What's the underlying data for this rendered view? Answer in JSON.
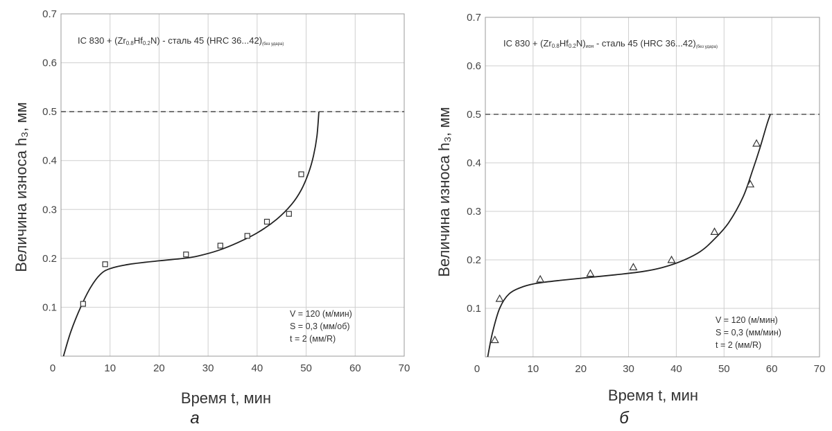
{
  "chart_data": [
    {
      "type": "scatter",
      "panel_label": "а",
      "title_text": "IC 830 + (Zr0.8Hf0.2N) - сталь 45 (HRC 36...42)",
      "title_parts": {
        "prefix": "IC 830 + (Zr",
        "sub1": "0.8",
        "mid": "Hf",
        "sub2": "0.2",
        "suffix": "N) - сталь 45 (HRC 36...42)",
        "tail": "(без удара)"
      },
      "xlabel": "Время t, мин",
      "ylabel": "Величина износа h₃, мм",
      "xlim": [
        0,
        70
      ],
      "ylim": [
        0,
        0.7
      ],
      "xticks": [
        "0",
        "10",
        "20",
        "30",
        "40",
        "50",
        "60",
        "70"
      ],
      "yticks": [
        "0.1",
        "0.2",
        "0.3",
        "0.4",
        "0.5",
        "0.6",
        "0.7"
      ],
      "grid": true,
      "threshold": 0.5,
      "marker": "square",
      "params": [
        "V = 120 (м/мин)",
        "S = 0,3  (мм/об)",
        "t =  2   (мм/R)"
      ],
      "points": [
        [
          4.5,
          0.107
        ],
        [
          9,
          0.188
        ],
        [
          25.5,
          0.208
        ],
        [
          32.5,
          0.226
        ],
        [
          38,
          0.246
        ],
        [
          42,
          0.275
        ],
        [
          46.5,
          0.291
        ],
        [
          49,
          0.372
        ]
      ],
      "curve": [
        [
          0.5,
          0.0
        ],
        [
          2,
          0.05
        ],
        [
          4,
          0.1
        ],
        [
          6,
          0.14
        ],
        [
          8,
          0.167
        ],
        [
          10,
          0.179
        ],
        [
          14,
          0.188
        ],
        [
          20,
          0.195
        ],
        [
          25,
          0.2
        ],
        [
          28,
          0.205
        ],
        [
          32,
          0.216
        ],
        [
          36,
          0.232
        ],
        [
          40,
          0.252
        ],
        [
          44,
          0.28
        ],
        [
          47,
          0.31
        ],
        [
          49,
          0.34
        ],
        [
          50.5,
          0.375
        ],
        [
          51.5,
          0.41
        ],
        [
          52.2,
          0.45
        ],
        [
          52.6,
          0.5
        ]
      ]
    },
    {
      "type": "scatter",
      "panel_label": "б",
      "title_text": "IC 830 + (Zr0.8Hf0.2N)ион - сталь 45 (HRC 36...42)",
      "title_parts": {
        "prefix": "IC 830 + (Zr",
        "sub1": "0.8",
        "mid": "Hf",
        "sub2": "0.2",
        "suffix": "N)",
        "sub3": "ион",
        "suffix2": " - сталь 45 (HRC 36...42)",
        "tail": "(без удара)"
      },
      "xlabel": "Время t, мин",
      "ylabel": "Величина износа h₃, мм",
      "xlim": [
        0,
        70
      ],
      "ylim": [
        0,
        0.7
      ],
      "xticks": [
        "0",
        "10",
        "20",
        "30",
        "40",
        "50",
        "60",
        "70"
      ],
      "yticks": [
        "0.1",
        "0.2",
        "0.3",
        "0.4",
        "0.5",
        "0.6",
        "0.7"
      ],
      "grid": true,
      "threshold": 0.5,
      "marker": "triangle",
      "params": [
        "V = 120 (м/мин)",
        "S = 0,3  (мм/мин)",
        " t =  2   (мм/R)"
      ],
      "points": [
        [
          2,
          0.035
        ],
        [
          3,
          0.12
        ],
        [
          11.5,
          0.16
        ],
        [
          22,
          0.172
        ],
        [
          31,
          0.185
        ],
        [
          39,
          0.2
        ],
        [
          48,
          0.258
        ],
        [
          55.5,
          0.356
        ],
        [
          56.8,
          0.44
        ]
      ],
      "curve": [
        [
          0.5,
          0.0
        ],
        [
          1.5,
          0.05
        ],
        [
          3,
          0.1
        ],
        [
          5,
          0.13
        ],
        [
          8,
          0.145
        ],
        [
          11,
          0.152
        ],
        [
          16,
          0.158
        ],
        [
          22,
          0.164
        ],
        [
          28,
          0.17
        ],
        [
          33,
          0.176
        ],
        [
          37,
          0.184
        ],
        [
          41,
          0.197
        ],
        [
          45,
          0.217
        ],
        [
          48,
          0.243
        ],
        [
          51,
          0.277
        ],
        [
          54,
          0.33
        ],
        [
          56,
          0.385
        ],
        [
          57.5,
          0.43
        ],
        [
          59,
          0.48
        ],
        [
          59.7,
          0.5
        ]
      ]
    }
  ]
}
